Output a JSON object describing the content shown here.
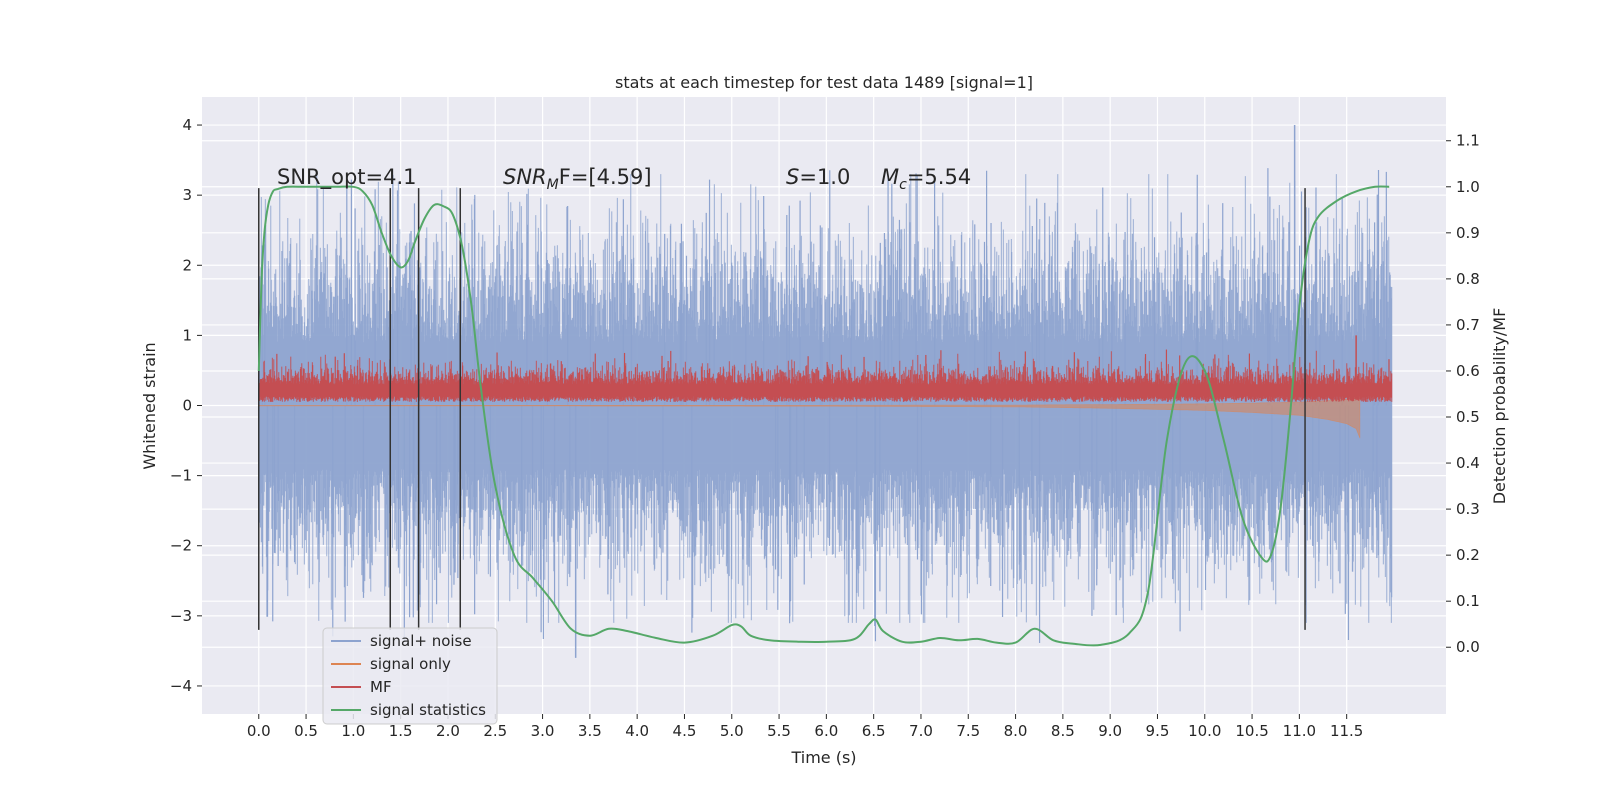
{
  "chart_data": {
    "type": "line",
    "title": "stats at each timestep for test data 1489 [signal=1]",
    "xlabel": "Time (s)",
    "ylabel": "Whitened strain",
    "ylabel_right": "Detection probability/MF",
    "xlim": [
      -0.6,
      12.55
    ],
    "ylim": [
      -4.4,
      4.4
    ],
    "ylim_right": [
      -0.145,
      1.195
    ],
    "x_ticks": [
      0.0,
      0.5,
      1.0,
      1.5,
      2.0,
      2.5,
      3.0,
      3.5,
      4.0,
      4.5,
      5.0,
      5.5,
      6.0,
      6.5,
      7.0,
      7.5,
      8.0,
      8.5,
      9.0,
      9.5,
      10.0,
      10.5,
      11.0,
      11.5
    ],
    "x_tick_labels": [
      "0.0",
      "0.5",
      "1.0",
      "1.5",
      "2.0",
      "2.5",
      "3.0",
      "3.5",
      "4.0",
      "4.5",
      "5.0",
      "5.5",
      "6.0",
      "6.5",
      "7.0",
      "7.5",
      "8.0",
      "8.5",
      "9.0",
      "9.5",
      "10.0",
      "10.5",
      "11.0",
      "11.5"
    ],
    "y_ticks": [
      -4,
      -3,
      -2,
      -1,
      0,
      1,
      2,
      3,
      4
    ],
    "y_tick_labels": [
      "−4",
      "−3",
      "−2",
      "−1",
      "0",
      "1",
      "2",
      "3",
      "4"
    ],
    "y_right_ticks": [
      0.0,
      0.1,
      0.2,
      0.3,
      0.4,
      0.5,
      0.6,
      0.7,
      0.8,
      0.9,
      1.0,
      1.1
    ],
    "y_right_tick_labels": [
      "0.0",
      "0.1",
      "0.2",
      "0.3",
      "0.4",
      "0.5",
      "0.6",
      "0.7",
      "0.8",
      "0.9",
      "1.0",
      "1.1"
    ],
    "grid": true,
    "legend_position": "bottom-left",
    "annotations": {
      "snr_opt": "SNR_opt=4.1",
      "snr_mf_sym": "SNR",
      "snr_mf_sub": "M",
      "snr_mf_rest": "F=[4.59]",
      "s_sym": "S",
      "s_rest": "=1.0",
      "mc_sym": "M",
      "mc_sub": "c",
      "mc_rest": "=5.54"
    },
    "vertical_lines_x": [
      0.0,
      1.39,
      1.69,
      2.13,
      11.06
    ],
    "vertical_lines_range": [
      -3.2,
      3.1
    ],
    "colors": {
      "signal_noise": "#8da3cf",
      "signal_only": "#dd8452",
      "mf": "#c44e52",
      "signal_statistics": "#55a868",
      "vertical_lines": "#333333",
      "plot_bg": "#eaeaf2",
      "grid": "#ffffff"
    },
    "series": [
      {
        "name": "signal+ noise",
        "axis": "left",
        "x_range": [
          0.0,
          11.98
        ],
        "typical_range": [
          -2.0,
          2.0
        ],
        "extremes": {
          "max": 4.0,
          "min": -3.6
        }
      },
      {
        "name": "signal only",
        "axis": "left",
        "x_range": [
          0.0,
          11.65
        ],
        "envelope_x": [
          0.0,
          6.0,
          8.0,
          9.0,
          10.0,
          10.5,
          11.0,
          11.3,
          11.5,
          11.6,
          11.65
        ],
        "envelope_amp": [
          0.005,
          0.01,
          0.02,
          0.04,
          0.07,
          0.1,
          0.14,
          0.2,
          0.26,
          0.33,
          0.5
        ]
      },
      {
        "name": "MF",
        "axis": "left",
        "x_range": [
          0.0,
          11.98
        ],
        "typical_range": [
          0.05,
          0.55
        ],
        "extremes": {
          "max": 1.0,
          "min": 0.0
        }
      },
      {
        "name": "signal statistics",
        "axis": "right",
        "x": [
          0.0,
          0.03,
          0.06,
          0.1,
          0.15,
          0.2,
          0.3,
          0.5,
          0.8,
          1.0,
          1.1,
          1.2,
          1.3,
          1.4,
          1.5,
          1.58,
          1.65,
          1.75,
          1.85,
          1.95,
          2.05,
          2.15,
          2.25,
          2.35,
          2.5,
          2.7,
          2.9,
          3.1,
          3.3,
          3.5,
          3.7,
          3.9,
          4.2,
          4.5,
          4.8,
          5.0,
          5.1,
          5.2,
          5.4,
          5.7,
          6.0,
          6.3,
          6.45,
          6.52,
          6.6,
          6.8,
          7.0,
          7.2,
          7.4,
          7.6,
          7.8,
          8.0,
          8.2,
          8.4,
          8.6,
          8.9,
          9.2,
          9.4,
          9.6,
          9.8,
          10.0,
          10.2,
          10.4,
          10.6,
          10.7,
          10.8,
          10.9,
          11.0,
          11.1,
          11.2,
          11.4,
          11.6,
          11.8,
          11.95
        ],
        "values": [
          0.6,
          0.8,
          0.9,
          0.96,
          0.99,
          0.995,
          1.0,
          1.0,
          1.0,
          1.0,
          0.99,
          0.96,
          0.9,
          0.85,
          0.825,
          0.84,
          0.88,
          0.93,
          0.96,
          0.958,
          0.94,
          0.87,
          0.74,
          0.56,
          0.35,
          0.2,
          0.15,
          0.1,
          0.04,
          0.025,
          0.04,
          0.035,
          0.02,
          0.01,
          0.025,
          0.048,
          0.045,
          0.025,
          0.015,
          0.012,
          0.012,
          0.018,
          0.05,
          0.06,
          0.035,
          0.012,
          0.012,
          0.02,
          0.015,
          0.018,
          0.01,
          0.01,
          0.04,
          0.015,
          0.008,
          0.005,
          0.03,
          0.12,
          0.45,
          0.62,
          0.6,
          0.45,
          0.28,
          0.195,
          0.2,
          0.3,
          0.5,
          0.74,
          0.88,
          0.935,
          0.97,
          0.99,
          1.0,
          1.0
        ]
      }
    ]
  }
}
